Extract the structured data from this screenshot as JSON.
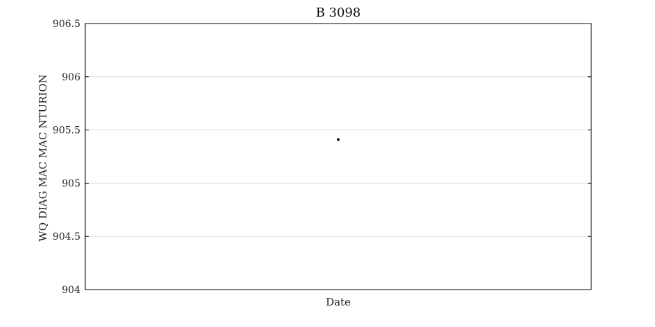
{
  "chart_data": {
    "type": "scatter",
    "title": "B 3098",
    "xlabel": "Date",
    "ylabel": "WQ DIAG MAC MAC NTURION",
    "ylim": [
      904,
      906.5
    ],
    "yticks": [
      "904",
      "904.5",
      "905",
      "905.5",
      "906",
      "906.5"
    ],
    "grid": true,
    "series": [
      {
        "points": [
          {
            "x": 0.5,
            "y": 905.41
          }
        ]
      }
    ],
    "colors": {
      "point": "#000000",
      "grid": "#dddddd",
      "axis": "#000000"
    }
  }
}
